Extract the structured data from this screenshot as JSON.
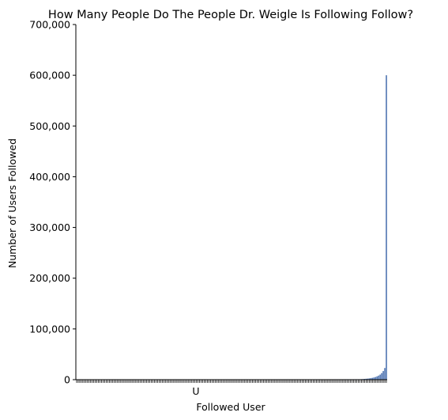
{
  "chart_data": {
    "type": "bar",
    "title": "How Many People Do The People Dr. Weigle Is Following Follow?",
    "xlabel": "Followed User",
    "ylabel": "Number of Users Followed",
    "ylim": [
      0,
      700000
    ],
    "yticks": [
      0,
      100000,
      200000,
      300000,
      400000,
      500000,
      600000,
      700000
    ],
    "ytick_labels": [
      "0",
      "100,000",
      "200,000",
      "300,000",
      "400,000",
      "500,000",
      "600,000",
      "700,000"
    ],
    "x_visible_label": "U",
    "bar_color": "#4c72b0",
    "grid": false,
    "legend": "none",
    "categories_count": 200,
    "tail_values": [
      1000,
      1200,
      1500,
      1800,
      2100,
      2500,
      3000,
      3600,
      4300,
      5200,
      6500,
      8000,
      10000,
      13000,
      17000,
      23000,
      600000
    ]
  }
}
